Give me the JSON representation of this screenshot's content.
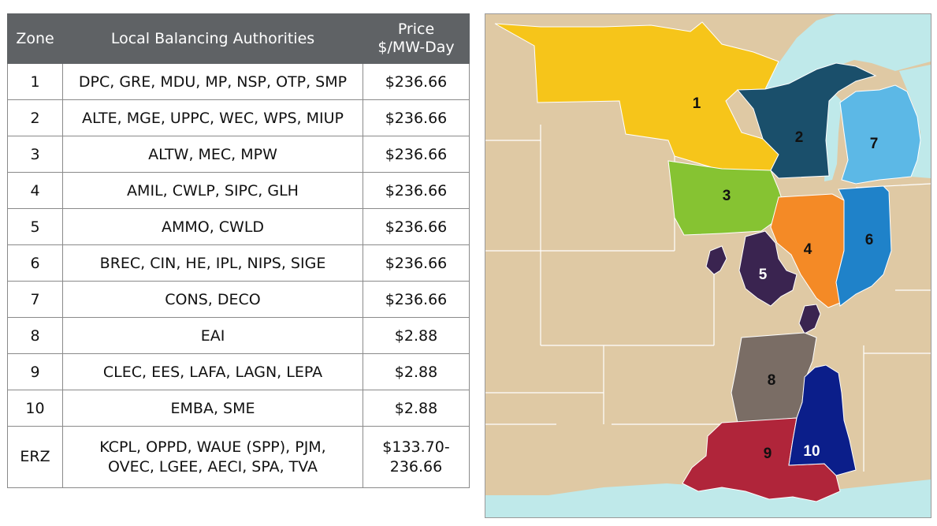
{
  "table": {
    "headers": {
      "zone": "Zone",
      "lba": "Local Balancing Authorities",
      "price_line1": "Price",
      "price_line2": "$/MW-Day"
    },
    "rows": [
      {
        "zone": "1",
        "lba": "DPC, GRE, MDU, MP, NSP, OTP, SMP",
        "price": "$236.66"
      },
      {
        "zone": "2",
        "lba": "ALTE, MGE, UPPC, WEC, WPS, MIUP",
        "price": "$236.66"
      },
      {
        "zone": "3",
        "lba": "ALTW, MEC, MPW",
        "price": "$236.66"
      },
      {
        "zone": "4",
        "lba": "AMIL, CWLP, SIPC, GLH",
        "price": "$236.66"
      },
      {
        "zone": "5",
        "lba": "AMMO, CWLD",
        "price": "$236.66"
      },
      {
        "zone": "6",
        "lba": "BREC, CIN, HE, IPL, NIPS, SIGE",
        "price": "$236.66"
      },
      {
        "zone": "7",
        "lba": "CONS, DECO",
        "price": "$236.66"
      },
      {
        "zone": "8",
        "lba": "EAI",
        "price": "$2.88"
      },
      {
        "zone": "9",
        "lba": "CLEC, EES, LAFA, LAGN, LEPA",
        "price": "$2.88"
      },
      {
        "zone": "10",
        "lba": "EMBA, SME",
        "price": "$2.88"
      }
    ],
    "erz": {
      "zone": "ERZ",
      "lba_line1": "KCPL, OPPD, WAUE (SPP), PJM,",
      "lba_line2": "OVEC, LGEE, AECI, SPA, TVA",
      "price_line1": "$133.70-",
      "price_line2": "236.66"
    }
  },
  "map": {
    "colors": {
      "land": "#dfc9a4",
      "water": "#bfe9ea",
      "border": "#ffffff",
      "zone1": "#f6c51a",
      "zone2": "#1a4f6b",
      "zone3": "#86c332",
      "zone4": "#f48a26",
      "zone5": "#3a2450",
      "zone6": "#1f82c9",
      "zone7": "#5cb8e6",
      "zone8": "#7a6d65",
      "zone9": "#b0253a",
      "zone10": "#0b1e8a"
    },
    "labels": {
      "z1": "1",
      "z2": "2",
      "z3": "3",
      "z4": "4",
      "z5": "5",
      "z6": "6",
      "z7": "7",
      "z8": "8",
      "z9": "9",
      "z10": "10"
    }
  }
}
